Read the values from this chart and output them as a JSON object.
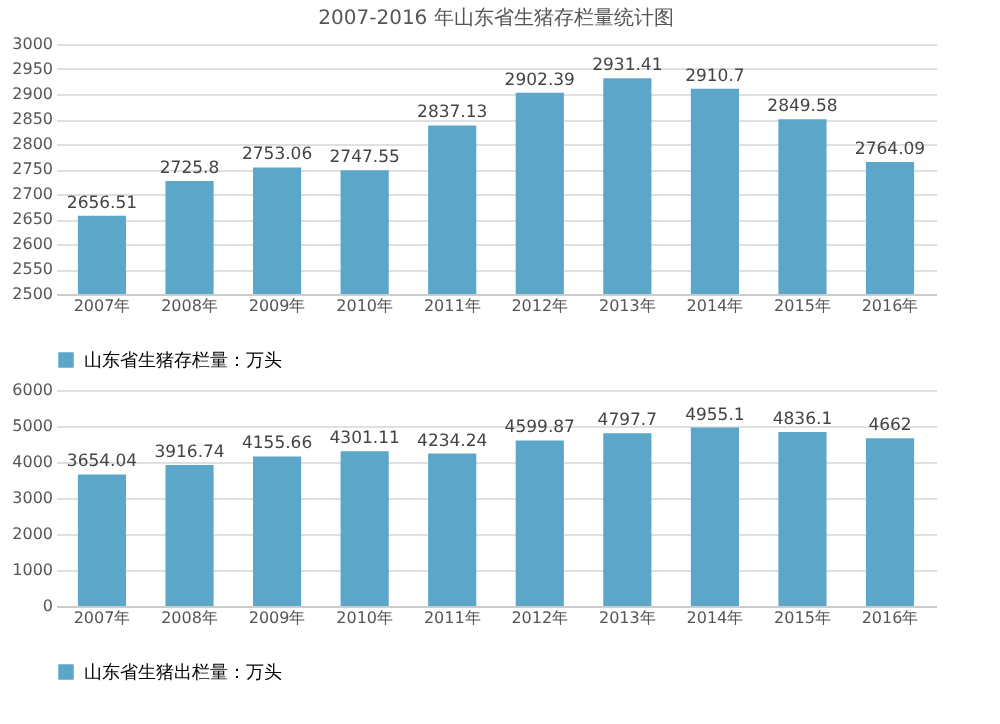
{
  "chart_data": [
    {
      "type": "bar",
      "title": "2007-2016 年山东省生猪存栏量统计图",
      "categories": [
        "2007年",
        "2008年",
        "2009年",
        "2010年",
        "2011年",
        "2012年",
        "2013年",
        "2014年",
        "2015年",
        "2016年"
      ],
      "series": [
        {
          "name": "山东省生猪存栏量：万头",
          "color": "#5ba6c9",
          "values": [
            2656.51,
            2725.8,
            2753.06,
            2747.55,
            2837.13,
            2902.39,
            2931.41,
            2910.7,
            2849.58,
            2764.09
          ]
        }
      ],
      "ylim": [
        2500,
        3000
      ],
      "yticks": [
        2500,
        2550,
        2600,
        2650,
        2700,
        2750,
        2800,
        2850,
        2900,
        2950,
        3000
      ],
      "grid": "y",
      "legend": "bottom",
      "data_labels": true
    },
    {
      "type": "bar",
      "categories": [
        "2007年",
        "2008年",
        "2009年",
        "2010年",
        "2011年",
        "2012年",
        "2013年",
        "2014年",
        "2015年",
        "2016年"
      ],
      "series": [
        {
          "name": "山东省生猪出栏量：万头",
          "color": "#5ba6c9",
          "values": [
            3654.04,
            3916.74,
            4155.66,
            4301.11,
            4234.24,
            4599.87,
            4797.7,
            4955.1,
            4836.1,
            4662
          ]
        }
      ],
      "ylim": [
        0,
        6000
      ],
      "yticks": [
        0,
        1000,
        2000,
        3000,
        4000,
        5000,
        6000
      ],
      "grid": "y",
      "legend": "bottom",
      "data_labels": true
    }
  ]
}
